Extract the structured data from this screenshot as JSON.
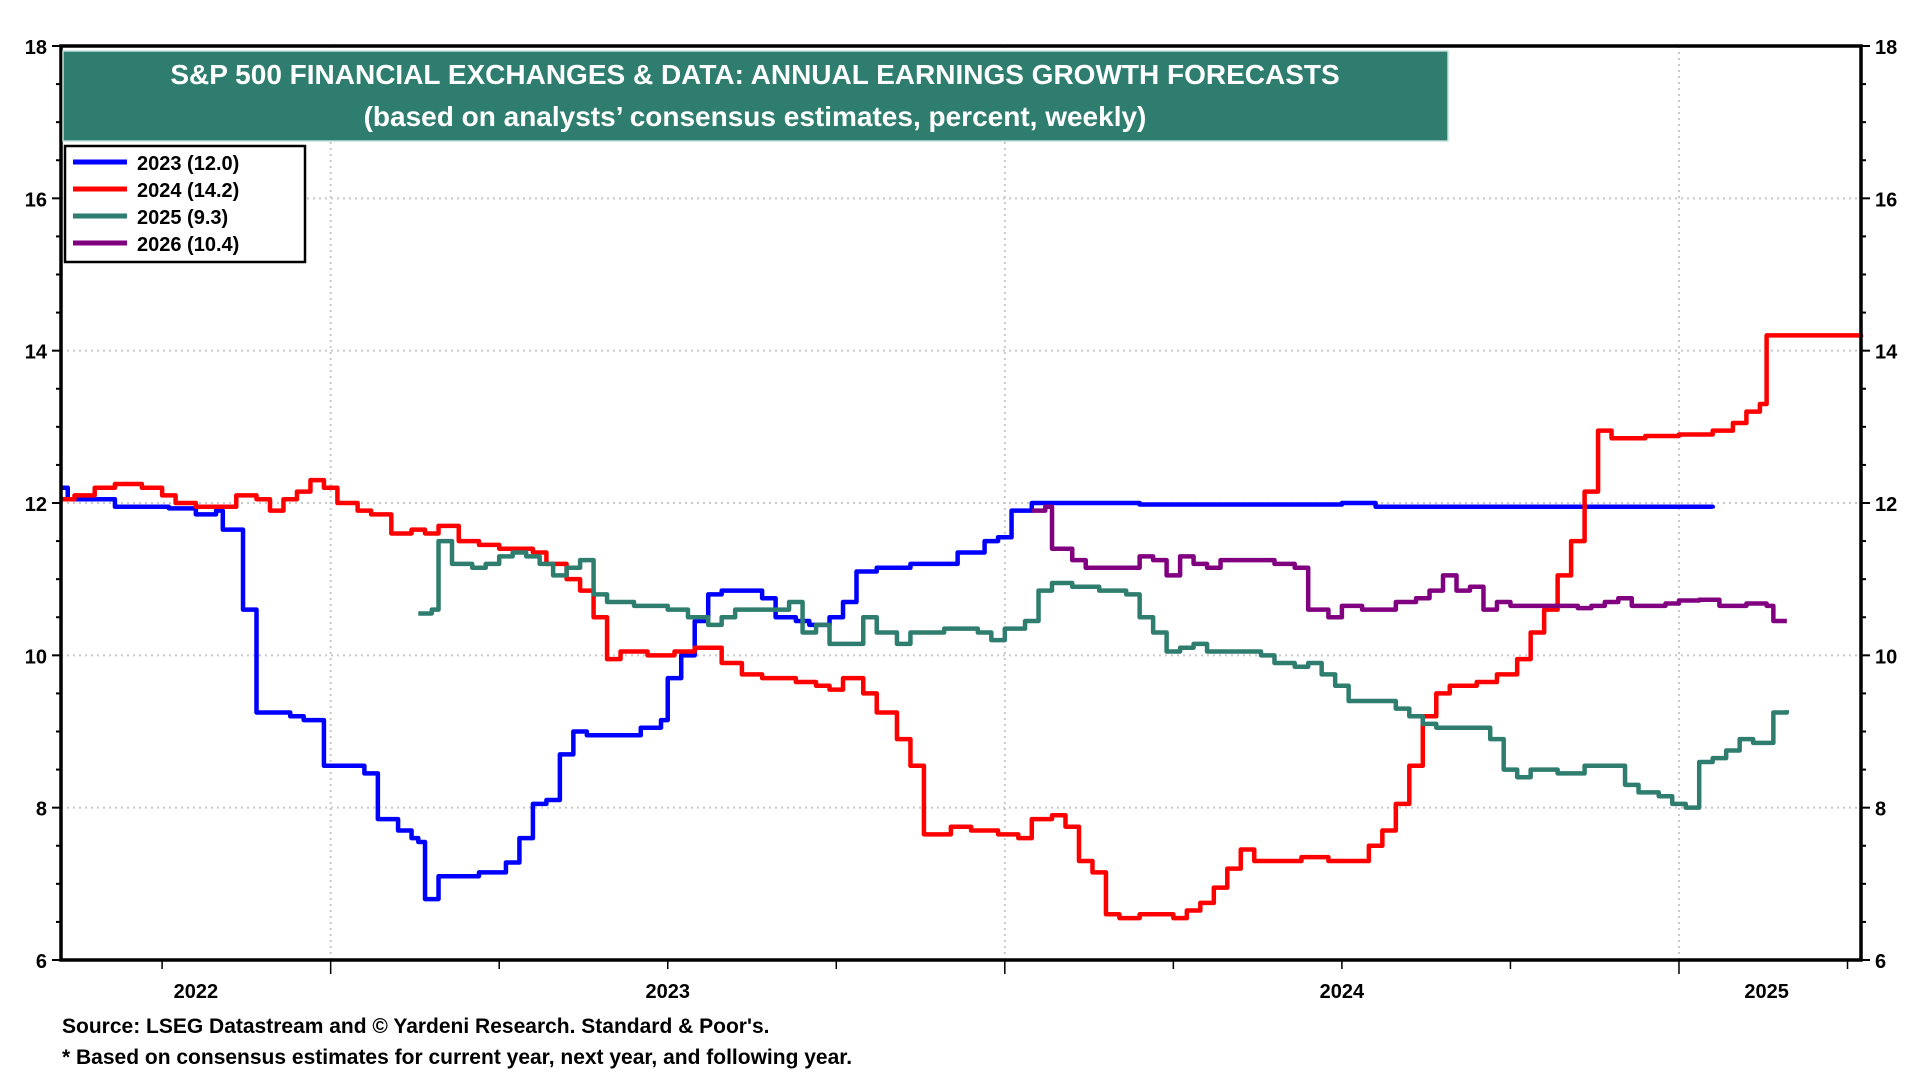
{
  "chart_data": {
    "type": "line",
    "title": "S&P 500 FINANCIAL EXCHANGES & DATA: ANNUAL EARNINGS GROWTH FORECASTS",
    "subtitle": "(based on analysts’ consensus estimates, percent, weekly)",
    "xlabel": "",
    "ylabel": "",
    "ylim": [
      6,
      18
    ],
    "yticks": [
      6,
      8,
      10,
      12,
      14,
      16,
      18
    ],
    "xlim": [
      2022.6,
      2025.27
    ],
    "xtick_labels": [
      {
        "label": "2022",
        "x": 2022.8
      },
      {
        "label": "2023",
        "x": 2023.5
      },
      {
        "label": "2024",
        "x": 2024.5
      },
      {
        "label": "2025",
        "x": 2025.13
      }
    ],
    "x_gridlines": [
      2023.0,
      2024.0,
      2025.0
    ],
    "grid": true,
    "legend_position": "top-left",
    "series": [
      {
        "name": "2023 (12.0)",
        "color": "#0000ff",
        "points": [
          [
            2022.6,
            12.2
          ],
          [
            2022.61,
            12.05
          ],
          [
            2022.68,
            11.95
          ],
          [
            2022.76,
            11.93
          ],
          [
            2022.8,
            11.85
          ],
          [
            2022.83,
            11.9
          ],
          [
            2022.84,
            11.65
          ],
          [
            2022.87,
            10.6
          ],
          [
            2022.89,
            9.25
          ],
          [
            2022.94,
            9.2
          ],
          [
            2022.96,
            9.15
          ],
          [
            2022.99,
            8.55
          ],
          [
            2023.04,
            8.55
          ],
          [
            2023.05,
            8.45
          ],
          [
            2023.07,
            7.85
          ],
          [
            2023.1,
            7.7
          ],
          [
            2023.12,
            7.6
          ],
          [
            2023.13,
            7.55
          ],
          [
            2023.14,
            6.8
          ],
          [
            2023.16,
            7.1
          ],
          [
            2023.22,
            7.15
          ],
          [
            2023.25,
            7.15
          ],
          [
            2023.26,
            7.28
          ],
          [
            2023.28,
            7.6
          ],
          [
            2023.3,
            8.05
          ],
          [
            2023.32,
            8.1
          ],
          [
            2023.34,
            8.7
          ],
          [
            2023.36,
            9.0
          ],
          [
            2023.38,
            8.95
          ],
          [
            2023.43,
            8.95
          ],
          [
            2023.46,
            9.05
          ],
          [
            2023.49,
            9.15
          ],
          [
            2023.5,
            9.7
          ],
          [
            2023.52,
            10.0
          ],
          [
            2023.54,
            10.45
          ],
          [
            2023.56,
            10.8
          ],
          [
            2023.58,
            10.85
          ],
          [
            2023.62,
            10.85
          ],
          [
            2023.64,
            10.75
          ],
          [
            2023.66,
            10.5
          ],
          [
            2023.69,
            10.45
          ],
          [
            2023.71,
            10.4
          ],
          [
            2023.74,
            10.5
          ],
          [
            2023.76,
            10.7
          ],
          [
            2023.78,
            11.1
          ],
          [
            2023.81,
            11.15
          ],
          [
            2023.86,
            11.2
          ],
          [
            2023.91,
            11.2
          ],
          [
            2023.93,
            11.35
          ],
          [
            2023.95,
            11.35
          ],
          [
            2023.97,
            11.5
          ],
          [
            2023.99,
            11.55
          ],
          [
            2024.01,
            11.9
          ],
          [
            2024.04,
            12.0
          ],
          [
            2024.14,
            12.0
          ],
          [
            2024.2,
            11.98
          ],
          [
            2024.5,
            12.0
          ],
          [
            2024.55,
            11.95
          ],
          [
            2024.98,
            11.95
          ],
          [
            2025.05,
            11.93
          ]
        ]
      },
      {
        "name": "2024 (14.2)",
        "color": "#ff0000",
        "points": [
          [
            2022.6,
            12.05
          ],
          [
            2022.62,
            12.1
          ],
          [
            2022.65,
            12.2
          ],
          [
            2022.68,
            12.25
          ],
          [
            2022.72,
            12.2
          ],
          [
            2022.75,
            12.1
          ],
          [
            2022.77,
            12.0
          ],
          [
            2022.8,
            11.95
          ],
          [
            2022.84,
            11.95
          ],
          [
            2022.86,
            12.1
          ],
          [
            2022.89,
            12.05
          ],
          [
            2022.91,
            11.9
          ],
          [
            2022.93,
            12.05
          ],
          [
            2022.95,
            12.15
          ],
          [
            2022.97,
            12.3
          ],
          [
            2022.99,
            12.2
          ],
          [
            2023.01,
            12.0
          ],
          [
            2023.04,
            11.9
          ],
          [
            2023.06,
            11.85
          ],
          [
            2023.09,
            11.6
          ],
          [
            2023.12,
            11.65
          ],
          [
            2023.14,
            11.6
          ],
          [
            2023.16,
            11.7
          ],
          [
            2023.19,
            11.5
          ],
          [
            2023.22,
            11.45
          ],
          [
            2023.25,
            11.4
          ],
          [
            2023.3,
            11.35
          ],
          [
            2023.32,
            11.2
          ],
          [
            2023.35,
            11.0
          ],
          [
            2023.37,
            10.85
          ],
          [
            2023.39,
            10.5
          ],
          [
            2023.41,
            9.95
          ],
          [
            2023.43,
            10.05
          ],
          [
            2023.47,
            10.0
          ],
          [
            2023.51,
            10.05
          ],
          [
            2023.54,
            10.1
          ],
          [
            2023.58,
            9.9
          ],
          [
            2023.61,
            9.75
          ],
          [
            2023.64,
            9.7
          ],
          [
            2023.69,
            9.65
          ],
          [
            2023.72,
            9.6
          ],
          [
            2023.74,
            9.55
          ],
          [
            2023.76,
            9.7
          ],
          [
            2023.79,
            9.5
          ],
          [
            2023.81,
            9.25
          ],
          [
            2023.84,
            8.9
          ],
          [
            2023.86,
            8.55
          ],
          [
            2023.88,
            7.65
          ],
          [
            2023.92,
            7.75
          ],
          [
            2023.95,
            7.7
          ],
          [
            2023.99,
            7.65
          ],
          [
            2024.02,
            7.6
          ],
          [
            2024.04,
            7.85
          ],
          [
            2024.07,
            7.9
          ],
          [
            2024.09,
            7.75
          ],
          [
            2024.11,
            7.3
          ],
          [
            2024.13,
            7.15
          ],
          [
            2024.15,
            6.6
          ],
          [
            2024.17,
            6.55
          ],
          [
            2024.2,
            6.6
          ],
          [
            2024.25,
            6.55
          ],
          [
            2024.27,
            6.65
          ],
          [
            2024.29,
            6.75
          ],
          [
            2024.31,
            6.95
          ],
          [
            2024.33,
            7.2
          ],
          [
            2024.35,
            7.45
          ],
          [
            2024.37,
            7.3
          ],
          [
            2024.4,
            7.3
          ],
          [
            2024.44,
            7.35
          ],
          [
            2024.48,
            7.3
          ],
          [
            2024.52,
            7.3
          ],
          [
            2024.54,
            7.5
          ],
          [
            2024.56,
            7.7
          ],
          [
            2024.58,
            8.05
          ],
          [
            2024.6,
            8.55
          ],
          [
            2024.62,
            9.2
          ],
          [
            2024.64,
            9.5
          ],
          [
            2024.66,
            9.6
          ],
          [
            2024.7,
            9.65
          ],
          [
            2024.73,
            9.75
          ],
          [
            2024.76,
            9.95
          ],
          [
            2024.78,
            10.3
          ],
          [
            2024.8,
            10.6
          ],
          [
            2024.82,
            11.05
          ],
          [
            2024.84,
            11.5
          ],
          [
            2024.86,
            12.15
          ],
          [
            2024.88,
            12.95
          ],
          [
            2024.9,
            12.85
          ],
          [
            2024.95,
            12.88
          ],
          [
            2025.0,
            12.9
          ],
          [
            2025.05,
            12.95
          ],
          [
            2025.08,
            13.05
          ],
          [
            2025.1,
            13.2
          ],
          [
            2025.12,
            13.3
          ],
          [
            2025.13,
            14.2
          ],
          [
            2025.23,
            14.2
          ],
          [
            2025.27,
            14.18
          ]
        ]
      },
      {
        "name": "2025 (9.3)",
        "color": "#2e7d6f",
        "points": [
          [
            2023.13,
            10.55
          ],
          [
            2023.15,
            10.6
          ],
          [
            2023.16,
            11.5
          ],
          [
            2023.18,
            11.2
          ],
          [
            2023.21,
            11.15
          ],
          [
            2023.23,
            11.2
          ],
          [
            2023.25,
            11.3
          ],
          [
            2023.27,
            11.35
          ],
          [
            2023.29,
            11.3
          ],
          [
            2023.31,
            11.2
          ],
          [
            2023.33,
            11.05
          ],
          [
            2023.35,
            11.15
          ],
          [
            2023.37,
            11.25
          ],
          [
            2023.39,
            10.8
          ],
          [
            2023.41,
            10.7
          ],
          [
            2023.45,
            10.65
          ],
          [
            2023.5,
            10.6
          ],
          [
            2023.53,
            10.5
          ],
          [
            2023.56,
            10.4
          ],
          [
            2023.58,
            10.5
          ],
          [
            2023.6,
            10.6
          ],
          [
            2023.66,
            10.6
          ],
          [
            2023.68,
            10.7
          ],
          [
            2023.7,
            10.3
          ],
          [
            2023.72,
            10.4
          ],
          [
            2023.74,
            10.15
          ],
          [
            2023.77,
            10.15
          ],
          [
            2023.79,
            10.5
          ],
          [
            2023.81,
            10.3
          ],
          [
            2023.84,
            10.15
          ],
          [
            2023.86,
            10.3
          ],
          [
            2023.91,
            10.35
          ],
          [
            2023.96,
            10.3
          ],
          [
            2023.98,
            10.2
          ],
          [
            2024.0,
            10.35
          ],
          [
            2024.03,
            10.45
          ],
          [
            2024.05,
            10.85
          ],
          [
            2024.07,
            10.95
          ],
          [
            2024.1,
            10.9
          ],
          [
            2024.14,
            10.85
          ],
          [
            2024.18,
            10.8
          ],
          [
            2024.2,
            10.5
          ],
          [
            2024.22,
            10.3
          ],
          [
            2024.24,
            10.05
          ],
          [
            2024.26,
            10.1
          ],
          [
            2024.28,
            10.15
          ],
          [
            2024.3,
            10.05
          ],
          [
            2024.34,
            10.05
          ],
          [
            2024.38,
            10.0
          ],
          [
            2024.4,
            9.9
          ],
          [
            2024.43,
            9.85
          ],
          [
            2024.45,
            9.9
          ],
          [
            2024.47,
            9.75
          ],
          [
            2024.49,
            9.6
          ],
          [
            2024.51,
            9.4
          ],
          [
            2024.56,
            9.4
          ],
          [
            2024.58,
            9.3
          ],
          [
            2024.6,
            9.2
          ],
          [
            2024.62,
            9.1
          ],
          [
            2024.64,
            9.05
          ],
          [
            2024.7,
            9.05
          ],
          [
            2024.72,
            8.9
          ],
          [
            2024.74,
            8.5
          ],
          [
            2024.76,
            8.4
          ],
          [
            2024.78,
            8.5
          ],
          [
            2024.82,
            8.45
          ],
          [
            2024.86,
            8.55
          ],
          [
            2024.9,
            8.55
          ],
          [
            2024.92,
            8.3
          ],
          [
            2024.94,
            8.2
          ],
          [
            2024.97,
            8.15
          ],
          [
            2024.99,
            8.05
          ],
          [
            2025.01,
            8.0
          ],
          [
            2025.03,
            8.6
          ],
          [
            2025.05,
            8.65
          ],
          [
            2025.07,
            8.75
          ],
          [
            2025.09,
            8.9
          ],
          [
            2025.11,
            8.85
          ],
          [
            2025.13,
            8.85
          ],
          [
            2025.14,
            9.25
          ],
          [
            2025.16,
            9.28
          ]
        ]
      },
      {
        "name": "2026 (10.4)",
        "color": "#800080",
        "points": [
          [
            2024.04,
            11.9
          ],
          [
            2024.06,
            11.95
          ],
          [
            2024.07,
            11.4
          ],
          [
            2024.1,
            11.25
          ],
          [
            2024.12,
            11.15
          ],
          [
            2024.18,
            11.15
          ],
          [
            2024.2,
            11.3
          ],
          [
            2024.22,
            11.25
          ],
          [
            2024.24,
            11.05
          ],
          [
            2024.26,
            11.3
          ],
          [
            2024.28,
            11.2
          ],
          [
            2024.3,
            11.15
          ],
          [
            2024.32,
            11.25
          ],
          [
            2024.36,
            11.25
          ],
          [
            2024.4,
            11.2
          ],
          [
            2024.43,
            11.15
          ],
          [
            2024.45,
            10.6
          ],
          [
            2024.48,
            10.5
          ],
          [
            2024.5,
            10.65
          ],
          [
            2024.53,
            10.6
          ],
          [
            2024.56,
            10.6
          ],
          [
            2024.58,
            10.7
          ],
          [
            2024.61,
            10.75
          ],
          [
            2024.63,
            10.85
          ],
          [
            2024.65,
            11.05
          ],
          [
            2024.67,
            10.85
          ],
          [
            2024.69,
            10.9
          ],
          [
            2024.71,
            10.6
          ],
          [
            2024.73,
            10.7
          ],
          [
            2024.75,
            10.65
          ],
          [
            2024.8,
            10.65
          ],
          [
            2024.85,
            10.62
          ],
          [
            2024.87,
            10.65
          ],
          [
            2024.89,
            10.7
          ],
          [
            2024.91,
            10.75
          ],
          [
            2024.93,
            10.65
          ],
          [
            2024.98,
            10.68
          ],
          [
            2025.0,
            10.72
          ],
          [
            2025.03,
            10.73
          ],
          [
            2025.06,
            10.65
          ],
          [
            2025.1,
            10.68
          ],
          [
            2025.13,
            10.65
          ],
          [
            2025.14,
            10.45
          ],
          [
            2025.16,
            10.45
          ]
        ]
      }
    ]
  },
  "footer": {
    "source": "Source: LSEG Datastream and © Yardeni Research. Standard & Poor's.",
    "note": "* Based on consensus estimates for current year, next year, and following year."
  }
}
